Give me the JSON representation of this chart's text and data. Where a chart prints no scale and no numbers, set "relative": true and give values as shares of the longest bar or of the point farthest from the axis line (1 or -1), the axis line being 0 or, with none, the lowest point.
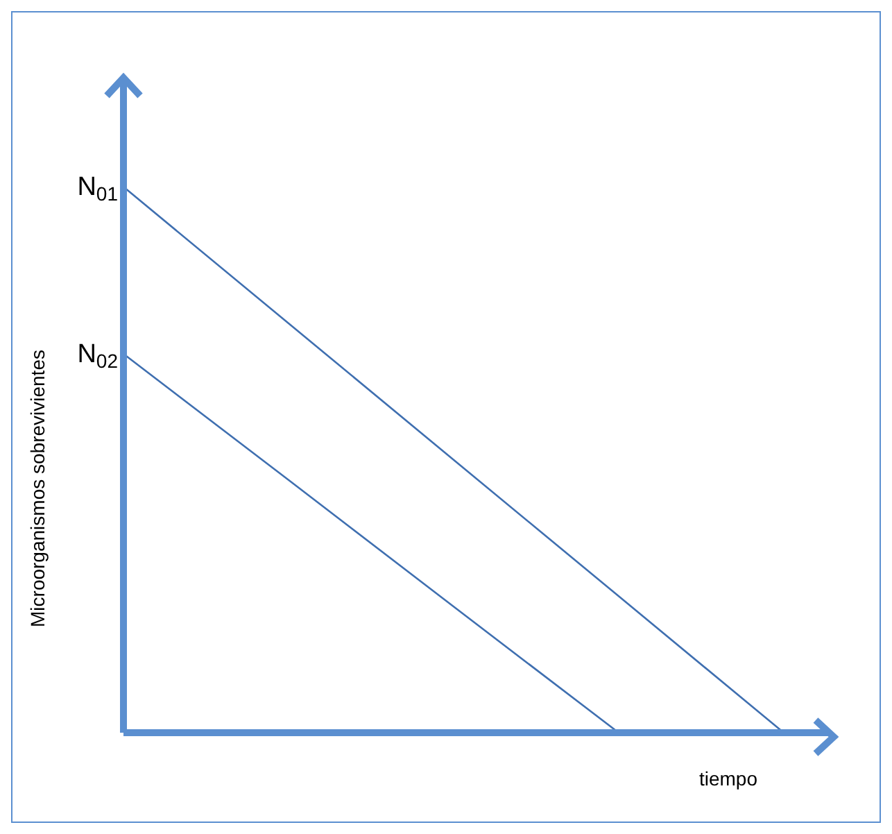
{
  "chart_data": {
    "type": "line",
    "relative": true,
    "xlabel": "tiempo",
    "ylabel": "Microorganismos sobrevivientes",
    "grid": false,
    "legend": false,
    "marker": "none",
    "line_style": "solid",
    "categories": [
      null,
      null,
      null,
      null,
      null
    ],
    "series": [
      {
        "color": "#3f6fb0",
        "values": [
          1,
          0.75,
          0.5,
          0.25,
          0
        ]
      },
      {
        "color": "#3f6fb0",
        "values": [
          0.694,
          0.463,
          0.231,
          0,
          null
        ]
      }
    ],
    "annotations": [
      "N$_{01}$",
      "N$_{02}$"
    ]
  }
}
